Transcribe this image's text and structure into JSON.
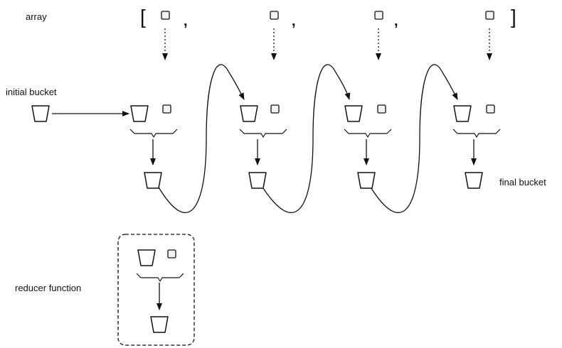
{
  "labels": {
    "array": "array",
    "initial_bucket": "initial bucket",
    "final_bucket": "final bucket",
    "reducer_function": "reducer function"
  },
  "array_syntax": {
    "open_bracket": "[",
    "close_bracket": "]",
    "separator": ","
  },
  "array_items": [
    "item-1",
    "item-2",
    "item-3",
    "item-4"
  ],
  "icons": {
    "bucket": "bucket-icon",
    "item": "square-item-icon",
    "combine": "brace-combine-icon"
  },
  "colors": {
    "stroke": "#111111",
    "fill": "#ffffff",
    "item_fill": "#f2f2f2"
  }
}
